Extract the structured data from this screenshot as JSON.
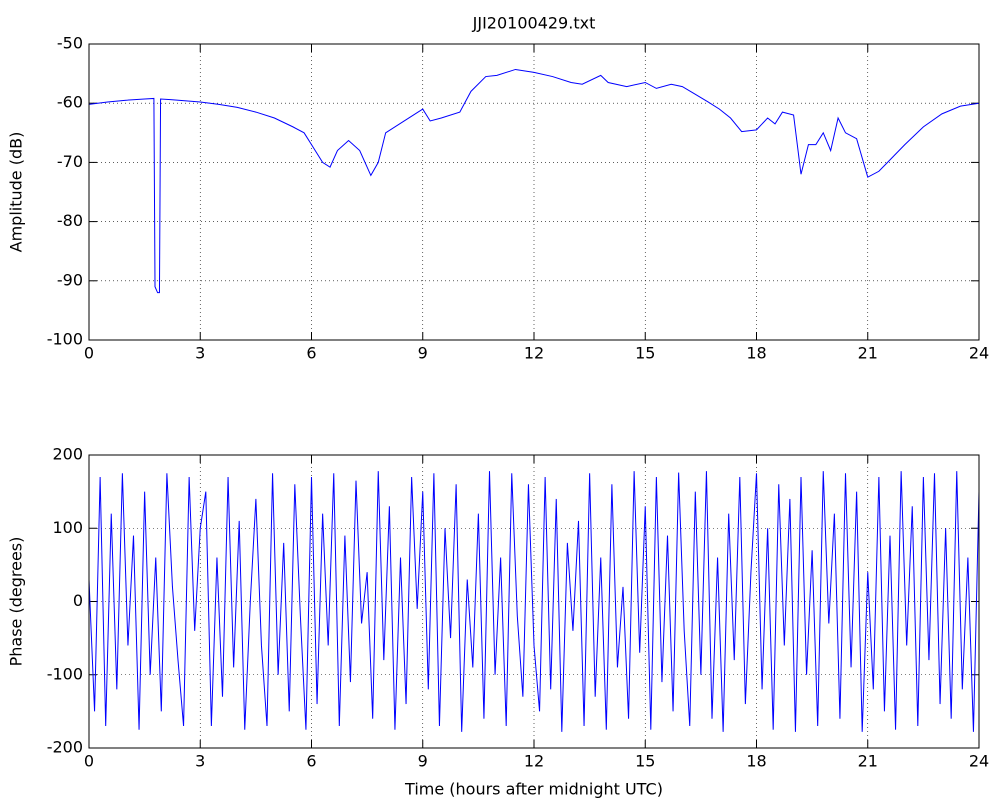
{
  "chart_data": [
    {
      "type": "line",
      "title": "JJI20100429.txt",
      "ylabel": "Amplitude (dB)",
      "x": [
        0,
        0.5,
        1,
        1.5,
        1.75,
        1.78,
        1.85,
        1.9,
        1.93,
        2.2,
        3,
        3.5,
        4,
        4.5,
        5,
        5.5,
        5.8,
        6,
        6.3,
        6.5,
        6.7,
        7,
        7.3,
        7.6,
        7.8,
        8,
        8.5,
        9,
        9.2,
        9.5,
        10,
        10.3,
        10.7,
        11,
        11.5,
        12,
        12.5,
        13,
        13.3,
        13.8,
        14,
        14.5,
        15,
        15.3,
        15.7,
        16,
        16.3,
        16.7,
        17,
        17.3,
        17.6,
        18,
        18.3,
        18.5,
        18.7,
        19,
        19.2,
        19.4,
        19.6,
        19.8,
        20,
        20.2,
        20.4,
        20.7,
        21,
        21.3,
        22,
        22.5,
        23,
        23.5,
        24
      ],
      "series": [
        {
          "color": "#0000ff",
          "values": [
            -60.2,
            -59.8,
            -59.5,
            -59.3,
            -59.2,
            -91,
            -92,
            -92,
            -59.3,
            -59.4,
            -59.8,
            -60.2,
            -60.7,
            -61.5,
            -62.5,
            -64,
            -65,
            -67,
            -70,
            -70.8,
            -68,
            -66.3,
            -68,
            -72.2,
            -70,
            -65,
            -63,
            -61,
            -63,
            -62.5,
            -61.5,
            -58,
            -55.5,
            -55.3,
            -54.3,
            -54.8,
            -55.5,
            -56.5,
            -56.8,
            -55.3,
            -56.5,
            -57.2,
            -56.5,
            -57.5,
            -56.8,
            -57.2,
            -58.3,
            -59.8,
            -61,
            -62.5,
            -64.8,
            -64.5,
            -62.5,
            -63.5,
            -61.5,
            -62,
            -72,
            -67,
            -67,
            -65,
            -68,
            -62.5,
            -65,
            -66,
            -72.5,
            -71.5,
            -67,
            -64,
            -61.8,
            -60.5,
            -60
          ]
        }
      ],
      "xlim": [
        0,
        24
      ],
      "xticks": [
        0,
        3,
        6,
        9,
        12,
        15,
        18,
        21,
        24
      ],
      "ylim": [
        -100,
        -50
      ],
      "yticks": [
        -100,
        -90,
        -80,
        -70,
        -60,
        -50
      ],
      "grid": true
    },
    {
      "type": "line",
      "xlabel": "Time (hours after midnight UTC)",
      "ylabel": "Phase (degrees)",
      "x": [
        0,
        0.15,
        0.3,
        0.45,
        0.6,
        0.75,
        0.9,
        1.05,
        1.2,
        1.35,
        1.5,
        1.65,
        1.8,
        1.95,
        2.1,
        2.25,
        2.4,
        2.55,
        2.7,
        2.85,
        3,
        3.15,
        3.3,
        3.45,
        3.6,
        3.75,
        3.9,
        4.05,
        4.2,
        4.35,
        4.5,
        4.65,
        4.8,
        4.95,
        5.1,
        5.25,
        5.4,
        5.55,
        5.7,
        5.85,
        6,
        6.15,
        6.3,
        6.45,
        6.6,
        6.75,
        6.9,
        7.05,
        7.2,
        7.35,
        7.5,
        7.65,
        7.8,
        7.95,
        8.1,
        8.25,
        8.4,
        8.55,
        8.7,
        8.85,
        9,
        9.15,
        9.3,
        9.45,
        9.6,
        9.75,
        9.9,
        10.05,
        10.2,
        10.35,
        10.5,
        10.65,
        10.8,
        10.95,
        11.1,
        11.25,
        11.4,
        11.55,
        11.7,
        11.85,
        12,
        12.15,
        12.3,
        12.45,
        12.6,
        12.75,
        12.9,
        13.05,
        13.2,
        13.35,
        13.5,
        13.65,
        13.8,
        13.95,
        14.1,
        14.25,
        14.4,
        14.55,
        14.7,
        14.85,
        15,
        15.15,
        15.3,
        15.45,
        15.6,
        15.75,
        15.9,
        16.05,
        16.2,
        16.35,
        16.5,
        16.65,
        16.8,
        16.95,
        17.1,
        17.25,
        17.4,
        17.55,
        17.7,
        17.85,
        18,
        18.15,
        18.3,
        18.45,
        18.6,
        18.75,
        18.9,
        19.05,
        19.2,
        19.35,
        19.5,
        19.65,
        19.8,
        19.95,
        20.1,
        20.25,
        20.4,
        20.55,
        20.7,
        20.85,
        21,
        21.15,
        21.3,
        21.45,
        21.6,
        21.75,
        21.9,
        22.05,
        22.2,
        22.35,
        22.5,
        22.65,
        22.8,
        22.95,
        23.1,
        23.25,
        23.4,
        23.55,
        23.7,
        23.85,
        24
      ],
      "series": [
        {
          "color": "#0000ff",
          "values": [
            30,
            -150,
            170,
            -170,
            120,
            -120,
            175,
            -60,
            90,
            -175,
            150,
            -100,
            60,
            -150,
            175,
            20,
            -80,
            -170,
            170,
            -40,
            100,
            150,
            -170,
            60,
            -130,
            170,
            -90,
            110,
            -175,
            0,
            140,
            -60,
            -170,
            175,
            -100,
            80,
            -150,
            160,
            -20,
            -175,
            170,
            -140,
            120,
            -60,
            175,
            -170,
            90,
            -110,
            165,
            -30,
            40,
            -160,
            178,
            -80,
            130,
            -175,
            60,
            -140,
            170,
            -10,
            150,
            -120,
            175,
            -170,
            100,
            -50,
            160,
            -178,
            30,
            -90,
            120,
            -160,
            178,
            -100,
            60,
            -170,
            175,
            -20,
            -130,
            160,
            -60,
            -150,
            170,
            -120,
            140,
            -178,
            80,
            -40,
            110,
            -170,
            175,
            -130,
            60,
            -175,
            160,
            -90,
            20,
            -160,
            178,
            -70,
            130,
            -175,
            170,
            -110,
            90,
            -150,
            176,
            -40,
            -170,
            150,
            -100,
            178,
            -160,
            60,
            -178,
            120,
            -80,
            170,
            -140,
            40,
            175,
            -120,
            100,
            -175,
            160,
            -60,
            140,
            -178,
            170,
            -100,
            70,
            -170,
            178,
            -30,
            120,
            -160,
            175,
            -90,
            150,
            -178,
            40,
            -120,
            170,
            -150,
            90,
            -175,
            178,
            -60,
            130,
            -170,
            170,
            -80,
            175,
            -140,
            100,
            -160,
            178,
            -120,
            60,
            -178,
            150
          ]
        }
      ],
      "xlim": [
        0,
        24
      ],
      "xticks": [
        0,
        3,
        6,
        9,
        12,
        15,
        18,
        21,
        24
      ],
      "ylim": [
        -200,
        200
      ],
      "yticks": [
        -200,
        -100,
        0,
        100,
        200
      ],
      "grid": true
    }
  ]
}
